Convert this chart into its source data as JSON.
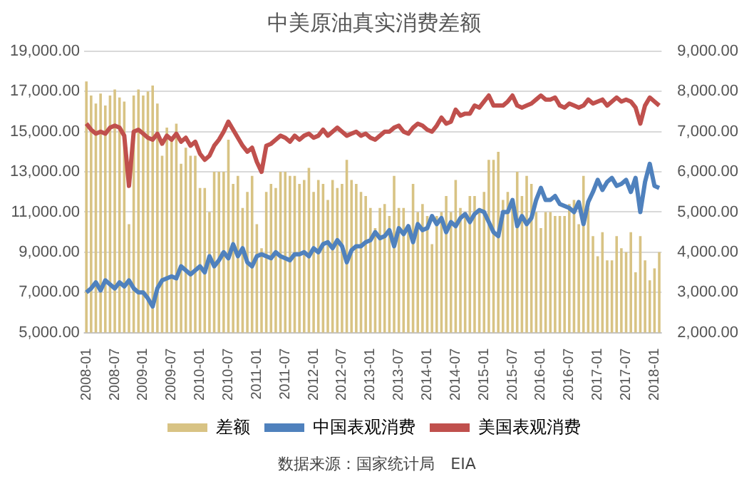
{
  "chart_data": {
    "type": "bar",
    "title": "中美原油真实消费差额",
    "categories": [
      "2008-01",
      null,
      null,
      null,
      null,
      null,
      "2008-07",
      null,
      null,
      null,
      null,
      null,
      "2009-01",
      null,
      null,
      null,
      null,
      null,
      "2009-07",
      null,
      null,
      null,
      null,
      null,
      "2010-01",
      null,
      null,
      null,
      null,
      null,
      "2010-07",
      null,
      null,
      null,
      null,
      null,
      "2011-01",
      null,
      null,
      null,
      null,
      null,
      "2011-07",
      null,
      null,
      null,
      null,
      null,
      "2012-01",
      null,
      null,
      null,
      null,
      null,
      "2012-07",
      null,
      null,
      null,
      null,
      null,
      "2013-01",
      null,
      null,
      null,
      null,
      null,
      "2013-07",
      null,
      null,
      null,
      null,
      null,
      "2014-01",
      null,
      null,
      null,
      null,
      null,
      "2014-07",
      null,
      null,
      null,
      null,
      null,
      "2015-01",
      null,
      null,
      null,
      null,
      null,
      "2015-07",
      null,
      null,
      null,
      null,
      null,
      "2016-01",
      null,
      null,
      null,
      null,
      null,
      "2016-07",
      null,
      null,
      null,
      null,
      null,
      "2017-01",
      null,
      null,
      null,
      null,
      null,
      "2017-07",
      null,
      null,
      null,
      null,
      null,
      "2018-01",
      null
    ],
    "series": [
      {
        "name": "差额",
        "axis": "y2",
        "color": "#d8c384",
        "values": [
          8250,
          7900,
          7700,
          7950,
          7650,
          7900,
          8050,
          7850,
          7750,
          4700,
          7900,
          8050,
          7900,
          8000,
          8150,
          7700,
          6400,
          7100,
          6800,
          7200,
          6200,
          6600,
          6400,
          6400,
          5600,
          5600,
          5000,
          6000,
          6000,
          6000,
          6800,
          5700,
          5900,
          5100,
          5500,
          5900,
          4700,
          4100,
          5500,
          5700,
          5600,
          6000,
          6000,
          5900,
          5900,
          5700,
          5800,
          6100,
          5500,
          5800,
          5700,
          5300,
          5800,
          5600,
          5700,
          6300,
          5800,
          5700,
          5500,
          5400,
          5100,
          4600,
          5100,
          5200,
          4900,
          5900,
          5100,
          5100,
          4600,
          5700,
          5000,
          5200,
          4900,
          4200,
          4900,
          5000,
          5400,
          5000,
          5800,
          5100,
          5000,
          5400,
          5400,
          5100,
          5500,
          6300,
          6300,
          6500,
          5300,
          5500,
          5200,
          6000,
          5400,
          5900,
          5700,
          5000,
          4600,
          5000,
          5000,
          4900,
          4900,
          4900,
          5200,
          5300,
          4700,
          5900,
          5100,
          4400,
          3900,
          4500,
          3800,
          3800,
          4400,
          4100,
          4000,
          4500,
          3500,
          4400,
          3800,
          3300,
          3600,
          4000
        ]
      },
      {
        "name": "中国表观消费",
        "type": "line",
        "axis": "y",
        "color": "#4f81bd",
        "values": [
          7000,
          7200,
          7500,
          7100,
          7600,
          7400,
          7200,
          7500,
          7300,
          7600,
          7200,
          7000,
          7000,
          6700,
          6300,
          7200,
          7600,
          7700,
          7800,
          7700,
          8300,
          8100,
          7900,
          8100,
          8300,
          8000,
          8800,
          8300,
          8600,
          9000,
          8700,
          9400,
          8800,
          9200,
          8500,
          8300,
          8800,
          8900,
          8800,
          8700,
          9000,
          8800,
          8700,
          8600,
          8900,
          8900,
          9000,
          8800,
          9200,
          9000,
          9400,
          9500,
          9200,
          9600,
          9300,
          8500,
          9100,
          9300,
          9300,
          9500,
          9600,
          10000,
          9700,
          9800,
          10100,
          9300,
          10200,
          9900,
          10300,
          9500,
          10400,
          10100,
          10200,
          10800,
          10400,
          10700,
          10000,
          10500,
          10300,
          10700,
          10900,
          10500,
          10900,
          11100,
          11000,
          10500,
          10000,
          9800,
          11000,
          11000,
          11600,
          10300,
          10800,
          10400,
          10700,
          11600,
          12200,
          11600,
          11600,
          11800,
          11400,
          11300,
          11200,
          11000,
          11500,
          10400,
          11500,
          12000,
          12600,
          12100,
          12500,
          12700,
          12300,
          12400,
          12600,
          12000,
          12700,
          11000,
          12500,
          13400,
          12300,
          12200
        ]
      },
      {
        "name": "美国表观消费",
        "type": "line",
        "axis": "y",
        "color": "#c0504d",
        "values": [
          15400,
          15100,
          14900,
          15000,
          14900,
          15200,
          15300,
          15200,
          14800,
          12300,
          15000,
          15100,
          14900,
          14700,
          14600,
          14900,
          14400,
          14800,
          14600,
          14900,
          14500,
          14700,
          14300,
          14500,
          13900,
          13600,
          13800,
          14300,
          14600,
          15000,
          15500,
          15100,
          14700,
          14300,
          14000,
          14200,
          13500,
          13000,
          14300,
          14400,
          14600,
          14800,
          14700,
          14500,
          14800,
          14600,
          14800,
          14900,
          14700,
          14800,
          15100,
          14800,
          15000,
          15200,
          15000,
          14800,
          14900,
          15000,
          14800,
          14900,
          14700,
          14600,
          14800,
          15000,
          15000,
          15200,
          15300,
          15000,
          14900,
          15200,
          15400,
          15300,
          15100,
          15000,
          15300,
          15700,
          15400,
          15500,
          16100,
          15800,
          15900,
          15900,
          16300,
          16200,
          16500,
          16800,
          16300,
          16300,
          16300,
          16500,
          16800,
          16300,
          16200,
          16300,
          16400,
          16600,
          16800,
          16600,
          16600,
          16700,
          16300,
          16200,
          16400,
          16300,
          16200,
          16300,
          16600,
          16400,
          16500,
          16600,
          16300,
          16500,
          16700,
          16500,
          16600,
          16500,
          16200,
          15400,
          16300,
          16700,
          16500,
          16300
        ]
      }
    ],
    "ylim": [
      5000,
      19000
    ],
    "yticks": [
      {
        "value": 5000,
        "label": "5,000.00"
      },
      {
        "value": 7000,
        "label": "7,000.00"
      },
      {
        "value": 9000,
        "label": "9,000.00"
      },
      {
        "value": 11000,
        "label": "11,000.00"
      },
      {
        "value": 13000,
        "label": "13,000.00"
      },
      {
        "value": 15000,
        "label": "15,000.00"
      },
      {
        "value": 17000,
        "label": "17,000.00"
      },
      {
        "value": 19000,
        "label": "19,000.00"
      }
    ],
    "y2lim": [
      2000,
      9000
    ],
    "y2ticks": [
      {
        "value": 2000,
        "label": "2,000.00"
      },
      {
        "value": 3000,
        "label": "3,000.00"
      },
      {
        "value": 4000,
        "label": "4,000.00"
      },
      {
        "value": 5000,
        "label": "5,000.00"
      },
      {
        "value": 6000,
        "label": "6,000.00"
      },
      {
        "value": 7000,
        "label": "7,000.00"
      },
      {
        "value": 8000,
        "label": "8,000.00"
      },
      {
        "value": 9000,
        "label": "9,000.00"
      }
    ],
    "grid": "y",
    "legend": "bottom",
    "marker": "none",
    "line_style": "solid",
    "annotations": [
      "数据来源：国家统计局　EIA"
    ]
  }
}
